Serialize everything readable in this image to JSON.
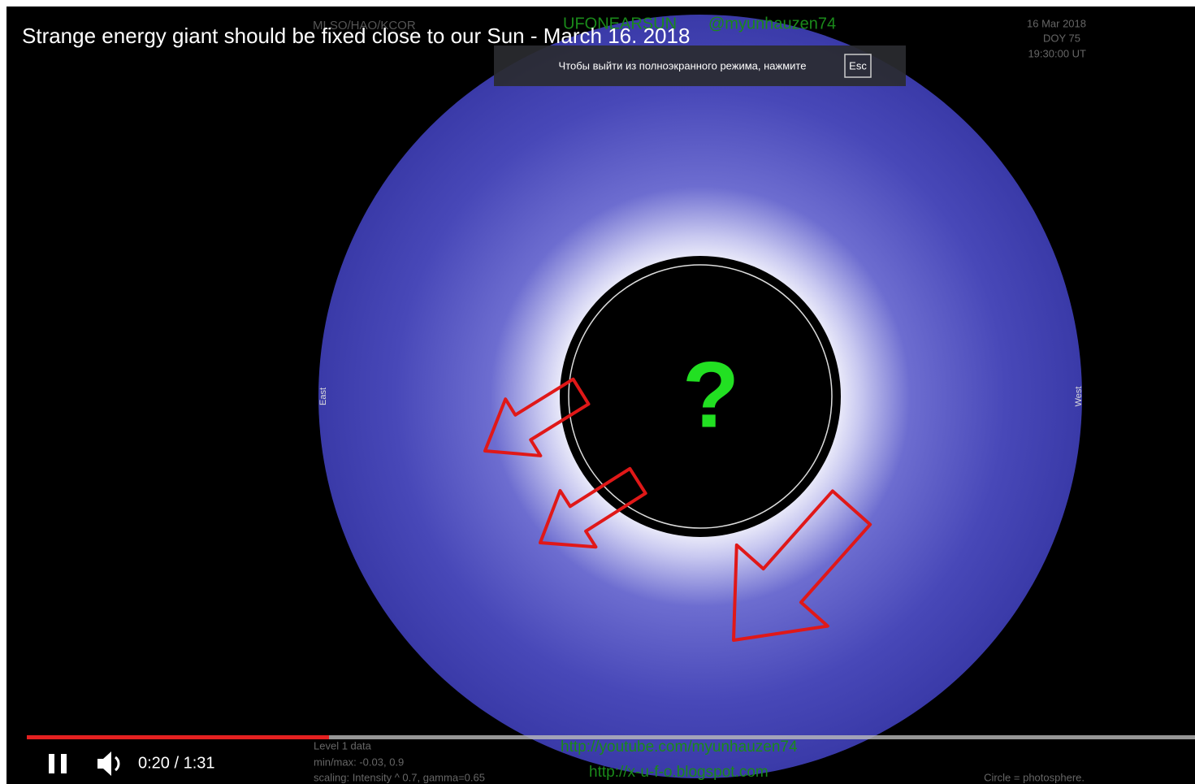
{
  "video": {
    "title": "Strange energy giant should be fixed close to our Sun - March 16. 2018",
    "time": "0:20 / 1:31",
    "fullscreen_notice": {
      "text": "Чтобы выйти из полноэкранного режима, нажмите",
      "key": "Esc"
    }
  },
  "frame": {
    "source": "MLSO/HAO/KCOR",
    "channel": "UFONEARSUN",
    "handle": "@myunhauzen74",
    "date": "16 Mar 2018",
    "doy": "DOY  75",
    "utc": "19:30:00 UT",
    "east": "East",
    "west": "West",
    "mark": "?",
    "level": "Level 1 data",
    "minmax": "min/max: -0.03, 0.9",
    "scaling": "scaling: Intensity ^ 0.7, gamma=0.65",
    "link1": "http://youtube.com/myunhauzen74",
    "link2": "http://x-u-f-o.blogspot.com",
    "legend": "Circle = photosphere."
  }
}
